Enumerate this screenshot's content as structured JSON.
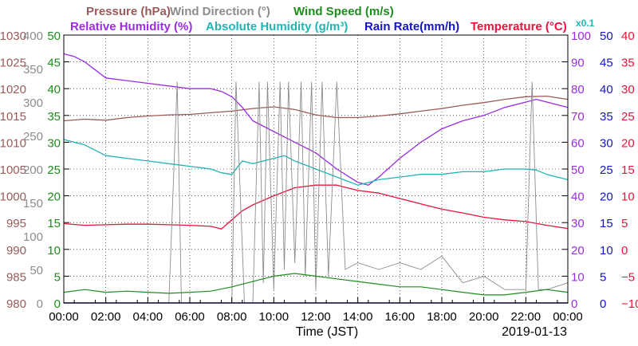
{
  "chart_data": {
    "type": "line",
    "xlabel": "Time (JST)",
    "date": "2019-01-13",
    "x_ticks": [
      "00:00",
      "02:00",
      "04:00",
      "06:00",
      "08:00",
      "10:00",
      "12:00",
      "14:00",
      "16:00",
      "18:00",
      "20:00",
      "22:00",
      "00:00"
    ],
    "x_range_hours": [
      0,
      24
    ],
    "grid": true,
    "legend_rows": [
      [
        {
          "name": "Pressure (hPa)",
          "color": "#9B5A5A"
        },
        {
          "name": "Wind Direction (°)",
          "color": "#8C8C8C"
        },
        {
          "name": "Wind Speed (m/s)",
          "color": "#1E8C1E"
        }
      ],
      [
        {
          "name": "Relative Humidity (%)",
          "color": "#9B2BE3"
        },
        {
          "name": "Absolute Humidity (g/m³)",
          "color": "#1FB5B5"
        },
        {
          "name": "Rain Rate(mm/h)",
          "color": "#1414C8"
        },
        {
          "name": "Temperature (°C)",
          "color": "#E8143C"
        },
        {
          "name": "x0.1",
          "color": "#1FB5B5"
        }
      ]
    ],
    "axes": {
      "pressure": {
        "ticks": [
          "1030",
          "1025",
          "1020",
          "1015",
          "1010",
          "1005",
          "1000",
          "995",
          "990",
          "985",
          "980"
        ],
        "range": [
          980,
          1030
        ],
        "color": "#9B5A5A"
      },
      "wind_direction": {
        "ticks": [
          "400",
          "350",
          "300",
          "250",
          "200",
          "150",
          "100",
          "50",
          "0"
        ],
        "range": [
          0,
          400
        ],
        "color": "#8C8C8C"
      },
      "wind_speed": {
        "ticks": [
          "50",
          "45",
          "40",
          "35",
          "30",
          "25",
          "20",
          "15",
          "10",
          "5",
          "0"
        ],
        "range": [
          0,
          50
        ],
        "color": "#1E8C1E"
      },
      "relative_humidity": {
        "ticks": [
          "100",
          "90",
          "80",
          "70",
          "60",
          "50",
          "40",
          "30",
          "20",
          "10",
          "0"
        ],
        "range": [
          0,
          100
        ],
        "color": "#9B2BE3"
      },
      "rain_rate": {
        "ticks": [
          "50",
          "45",
          "40",
          "35",
          "30",
          "25",
          "20",
          "15",
          "10",
          "5",
          "0"
        ],
        "range": [
          0,
          50
        ],
        "color": "#1414C8"
      },
      "temperature": {
        "ticks": [
          "40",
          "35",
          "30",
          "25",
          "20",
          "15",
          "10",
          "5",
          "0",
          "−5",
          "−10"
        ],
        "range": [
          -10,
          40
        ],
        "color": "#E8143C"
      }
    },
    "series": [
      {
        "name": "Pressure (hPa)",
        "axis": "pressure",
        "color": "#9B5A5A",
        "x": [
          0,
          1,
          2,
          3,
          4,
          5,
          6,
          7,
          8,
          9,
          10,
          11,
          12,
          13,
          14,
          15,
          16,
          17,
          18,
          19,
          20,
          21,
          22,
          23,
          24
        ],
        "values": [
          1014,
          1014.3,
          1014.1,
          1014.6,
          1014.9,
          1015.1,
          1015.2,
          1015.5,
          1015.8,
          1016.3,
          1016.6,
          1016.1,
          1015.1,
          1014.6,
          1014.6,
          1014.9,
          1015.3,
          1015.8,
          1016.3,
          1016.9,
          1017.4,
          1018,
          1018.5,
          1018.6,
          1018
        ]
      },
      {
        "name": "Relative Humidity (%)",
        "axis": "relative_humidity",
        "color": "#9B2BE3",
        "x": [
          0,
          0.5,
          1,
          1.5,
          2,
          3,
          4,
          5,
          6,
          7,
          7.5,
          8,
          8.5,
          9,
          10,
          11,
          12,
          13,
          14,
          14.5,
          15,
          16,
          17,
          18,
          19,
          20,
          21,
          22,
          22.5,
          23,
          23.5,
          24
        ],
        "values": [
          93,
          92,
          90,
          87,
          84,
          83,
          82,
          81,
          80,
          80,
          79,
          77,
          73,
          68,
          64,
          60,
          56,
          50,
          45,
          44,
          47,
          54,
          60,
          65,
          68,
          70,
          73,
          75,
          76,
          75,
          74,
          73
        ]
      },
      {
        "name": "Absolute Humidity (g/m³)",
        "axis": "rain_rate",
        "color": "#1FB5B5",
        "x": [
          0,
          1,
          2,
          3,
          4,
          5,
          6,
          7,
          7.5,
          8,
          8.5,
          9,
          10,
          10.5,
          11,
          12,
          13,
          14,
          15,
          16,
          17,
          18,
          19,
          20,
          21,
          22,
          22.5,
          23,
          23.5,
          24
        ],
        "values": [
          30.5,
          29.5,
          27.5,
          27,
          26.5,
          26,
          25.5,
          25,
          24.3,
          24,
          26.5,
          26,
          27,
          27.5,
          26.5,
          25,
          23.5,
          22,
          23,
          23.5,
          24,
          24,
          24.5,
          24.5,
          25,
          25,
          24.8,
          24,
          23.5,
          23
        ]
      },
      {
        "name": "Temperature (°C)",
        "axis": "temperature",
        "color": "#E8143C",
        "x": [
          0,
          1,
          2,
          3,
          4,
          5,
          6,
          7,
          7.5,
          8,
          8.5,
          9,
          10,
          11,
          12,
          13,
          14,
          15,
          16,
          17,
          18,
          19,
          20,
          21,
          22,
          23,
          24
        ],
        "values": [
          4.8,
          4.5,
          4.6,
          4.7,
          4.7,
          4.6,
          4.5,
          4.3,
          3.8,
          5.5,
          7.2,
          8.3,
          10,
          11.5,
          12,
          12,
          11,
          10.5,
          9.5,
          8.5,
          7.5,
          6.8,
          6,
          5.5,
          5.2,
          4.5,
          3.9
        ]
      },
      {
        "name": "Wind Direction (°)",
        "axis": "wind_direction",
        "color": "#8C8C8C",
        "x": [
          0,
          5,
          5.4,
          5.6,
          6,
          7,
          7.5,
          7.8,
          8,
          8.2,
          8.6,
          9,
          9.3,
          9.5,
          9.7,
          10,
          10.3,
          10.5,
          10.7,
          11,
          11.3,
          11.5,
          11.8,
          12,
          12.3,
          12.6,
          13,
          13.4,
          14,
          15,
          16,
          17,
          18,
          19,
          20,
          21,
          22,
          22.3,
          22.6,
          23,
          24
        ],
        "values": [
          0,
          0,
          330,
          0,
          0,
          0,
          0,
          0,
          0,
          330,
          0,
          0,
          330,
          30,
          330,
          20,
          330,
          50,
          330,
          60,
          330,
          40,
          330,
          20,
          330,
          40,
          330,
          50,
          60,
          50,
          60,
          50,
          70,
          30,
          40,
          20,
          20,
          330,
          20,
          20,
          30
        ]
      },
      {
        "name": "Wind Speed (m/s)",
        "axis": "wind_speed",
        "color": "#1E8C1E",
        "x": [
          0,
          1,
          2,
          3,
          4,
          5,
          6,
          7,
          8,
          9,
          10,
          11,
          12,
          13,
          14,
          15,
          16,
          17,
          18,
          19,
          20,
          21,
          22,
          23,
          24
        ],
        "values": [
          2,
          2.5,
          2,
          2.2,
          2,
          1.8,
          2,
          2.2,
          3,
          4,
          5,
          5.5,
          5,
          4.5,
          4,
          3.5,
          3,
          3,
          2.5,
          2,
          1.5,
          1.5,
          2,
          2.5,
          2
        ]
      },
      {
        "name": "Rain Rate(mm/h)",
        "axis": "rain_rate",
        "color": "#1414C8",
        "x": [
          0,
          24
        ],
        "values": [
          0,
          0
        ]
      }
    ]
  }
}
